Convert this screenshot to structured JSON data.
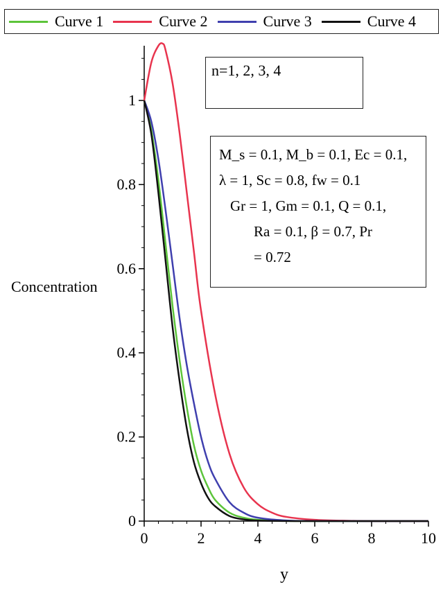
{
  "legend": [
    {
      "label": "Curve 1",
      "color": "#5cc43a"
    },
    {
      "label": "Curve 2",
      "color": "#e8344e"
    },
    {
      "label": "Curve 3",
      "color": "#3f3fae"
    },
    {
      "label": "Curve 4",
      "color": "#111111"
    }
  ],
  "annotations": {
    "n_values": "n=1, 2, 3, 4",
    "params": [
      "M_s = 0.1, M_b = 0.1, Ec = 0.1,",
      "λ = 1, Sc = 0.8, fw = 0.1",
      "Gr = 1, Gm = 0.1, Q = 0.1,",
      "Ra = 0.1, β = 0.7, Pr",
      "= 0.72"
    ]
  },
  "chart_data": {
    "type": "line",
    "title": "",
    "xlabel": "y",
    "ylabel": "Concentration",
    "xlim": [
      0,
      10
    ],
    "ylim": [
      0,
      1.13
    ],
    "xticks": [
      "0",
      "2",
      "4",
      "6",
      "8",
      "10"
    ],
    "yticks": [
      "0",
      "0.2",
      "0.4",
      "0.6",
      "0.8",
      "1"
    ],
    "grid": false,
    "legend_position": "top",
    "series": [
      {
        "name": "Curve 1",
        "color": "#5cc43a",
        "x": [
          0,
          0.25,
          0.5,
          0.75,
          1,
          1.25,
          1.5,
          1.75,
          2,
          2.25,
          2.5,
          3,
          3.5,
          4,
          5,
          6,
          8,
          10
        ],
        "y": [
          1.0,
          0.93,
          0.81,
          0.66,
          0.51,
          0.38,
          0.27,
          0.18,
          0.12,
          0.08,
          0.05,
          0.02,
          0.008,
          0.003,
          0.0005,
          0.0001,
          0,
          0
        ]
      },
      {
        "name": "Curve 2",
        "color": "#e8344e",
        "x": [
          0,
          0.25,
          0.5,
          0.65,
          0.75,
          1,
          1.25,
          1.5,
          1.75,
          2,
          2.5,
          3,
          3.5,
          4,
          4.5,
          5,
          6,
          7,
          8,
          10
        ],
        "y": [
          1.0,
          1.09,
          1.13,
          1.135,
          1.12,
          1.04,
          0.92,
          0.78,
          0.64,
          0.5,
          0.3,
          0.16,
          0.08,
          0.04,
          0.02,
          0.01,
          0.003,
          0.001,
          0,
          0
        ]
      },
      {
        "name": "Curve 3",
        "color": "#3f3fae",
        "x": [
          0,
          0.25,
          0.5,
          0.75,
          1,
          1.25,
          1.5,
          1.75,
          2,
          2.25,
          2.5,
          3,
          3.5,
          4,
          5,
          6,
          8,
          10
        ],
        "y": [
          1.0,
          0.95,
          0.86,
          0.74,
          0.61,
          0.48,
          0.37,
          0.28,
          0.2,
          0.14,
          0.1,
          0.045,
          0.02,
          0.008,
          0.0015,
          0.0003,
          0,
          0
        ]
      },
      {
        "name": "Curve 4",
        "color": "#111111",
        "x": [
          0,
          0.25,
          0.5,
          0.75,
          1,
          1.25,
          1.5,
          1.75,
          2,
          2.25,
          2.5,
          3,
          3.5,
          4,
          5,
          6,
          8,
          10
        ],
        "y": [
          1.0,
          0.92,
          0.78,
          0.62,
          0.46,
          0.33,
          0.22,
          0.14,
          0.09,
          0.055,
          0.035,
          0.012,
          0.004,
          0.0012,
          0.0002,
          0,
          0,
          0
        ]
      }
    ]
  }
}
